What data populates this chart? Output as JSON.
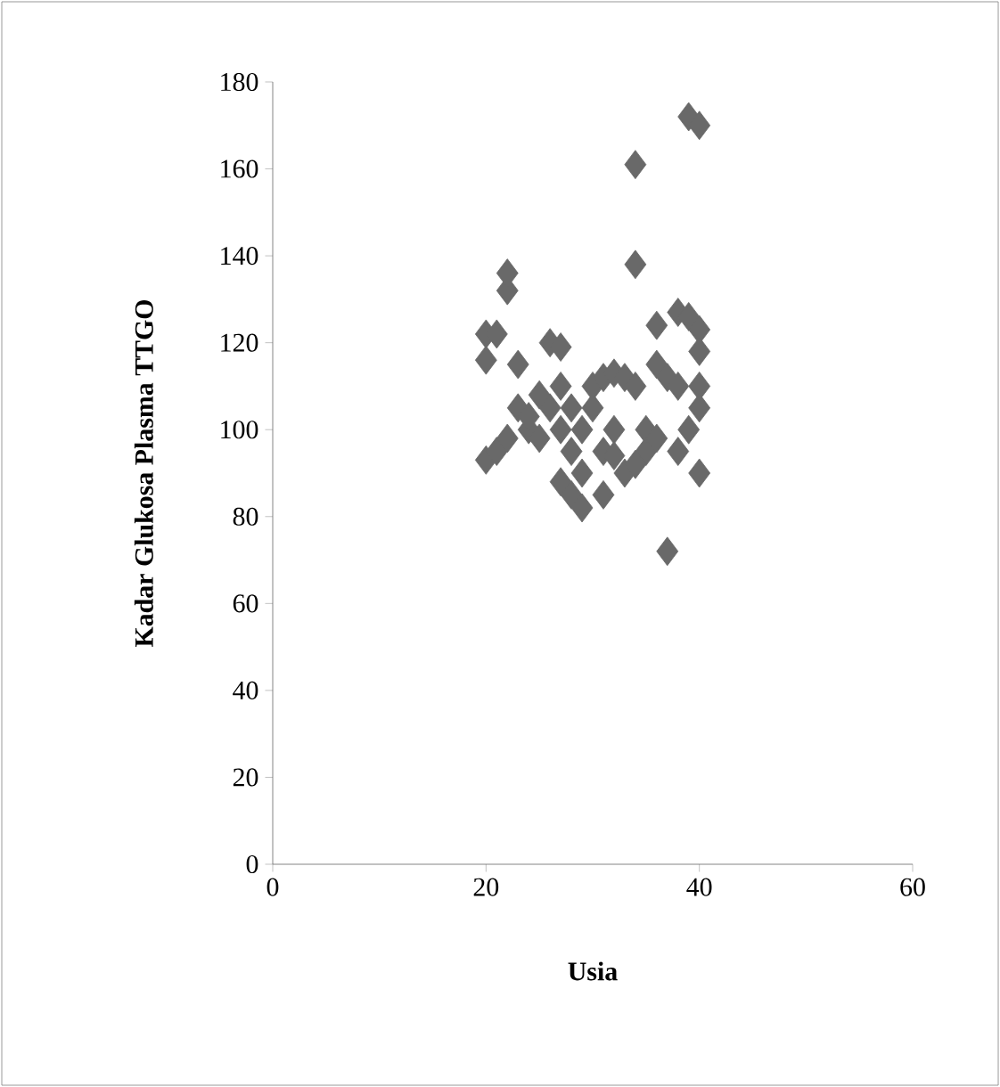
{
  "chart_data": {
    "type": "scatter",
    "xlabel": "Usia",
    "ylabel": "Kadar Glukosa Plasma TTGO",
    "xlim": [
      0,
      60
    ],
    "ylim": [
      0,
      180
    ],
    "xticks": [
      0,
      20,
      40,
      60
    ],
    "yticks": [
      0,
      20,
      40,
      60,
      80,
      100,
      120,
      140,
      160,
      180
    ],
    "grid": false,
    "marker": "diamond",
    "series": [
      {
        "color": "#696969",
        "x": [
          20,
          20,
          21,
          20,
          21,
          22,
          22,
          22,
          23,
          23,
          24,
          25,
          26,
          27,
          27,
          27,
          27,
          28,
          28,
          29,
          29,
          29,
          30,
          30,
          31,
          31,
          31,
          32,
          32,
          33,
          33,
          34,
          34,
          34,
          35,
          35,
          36,
          36,
          36,
          37,
          37,
          38,
          38,
          39,
          39,
          40,
          40,
          40,
          40,
          40,
          40,
          39,
          38,
          26,
          25,
          24,
          28,
          32,
          34
        ],
        "values": [
          116,
          122,
          122,
          93,
          95,
          98,
          132,
          136,
          115,
          105,
          100,
          98,
          120,
          119,
          110,
          100,
          88,
          85,
          95,
          82,
          90,
          100,
          105,
          110,
          112,
          95,
          85,
          113,
          100,
          90,
          112,
          110,
          161,
          138,
          95,
          100,
          98,
          115,
          124,
          72,
          112,
          95,
          127,
          126,
          172,
          170,
          123,
          118,
          110,
          105,
          90,
          100,
          110,
          105,
          108,
          103,
          105,
          94,
          92
        ]
      }
    ]
  }
}
